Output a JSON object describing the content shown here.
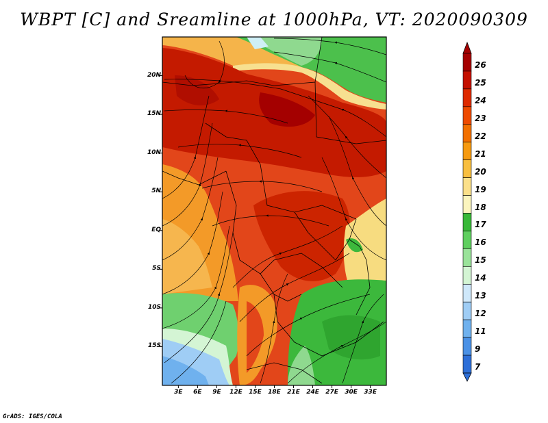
{
  "title": "WBPT [C] and Sreamline at 1000hPa, VT: 2020090309",
  "footer": "GrADS: IGES/COLA",
  "lat_labels": [
    "20N",
    "15N",
    "10N",
    "5N",
    "EQ",
    "5S",
    "10S",
    "15S"
  ],
  "lat_values": [
    20,
    15,
    10,
    5,
    0,
    -5,
    -10,
    -15
  ],
  "lon_labels": [
    "3E",
    "6E",
    "9E",
    "12E",
    "15E",
    "18E",
    "21E",
    "24E",
    "27E",
    "30E",
    "33E"
  ],
  "lon_values": [
    3,
    6,
    9,
    12,
    15,
    18,
    21,
    24,
    27,
    30,
    33
  ],
  "map_extent": {
    "lon_min": 0.5,
    "lon_max": 35.5,
    "lat_min": -20,
    "lat_max": 25
  },
  "colorbar": {
    "labels": [
      "26",
      "25",
      "24",
      "23",
      "22",
      "21",
      "20",
      "19",
      "18",
      "17",
      "16",
      "15",
      "14",
      "13",
      "12",
      "11",
      "9",
      "7"
    ],
    "colors": [
      "#a50000",
      "#c41000",
      "#de2a00",
      "#ee4a00",
      "#f27000",
      "#f69a10",
      "#f8bf40",
      "#fbe08a",
      "#fbf5be",
      "#38b838",
      "#5fcf5f",
      "#9ae39a",
      "#d4f5d4",
      "#cfe8fa",
      "#9fcdf5",
      "#6fb1ee",
      "#4a91e6",
      "#2d6fd8"
    ]
  },
  "icons": {
    "north_arrow": "arrow-triangle-up",
    "south_arrow": "arrow-triangle-down"
  }
}
